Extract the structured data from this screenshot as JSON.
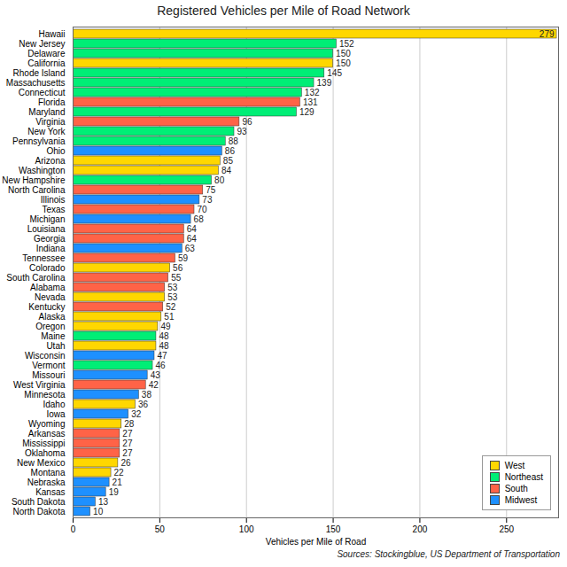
{
  "chart_data": {
    "type": "bar",
    "orientation": "horizontal",
    "title": "Registered Vehicles per Mile of Road Network",
    "x_label": "Vehicles per Mile of Road",
    "source": "Sources: Stockingblue, US Department of Transportation",
    "categories": [
      "Hawaii",
      "New Jersey",
      "Delaware",
      "California",
      "Rhode Island",
      "Massachusetts",
      "Connecticut",
      "Florida",
      "Maryland",
      "Virginia",
      "New York",
      "Pennsylvania",
      "Ohio",
      "Arizona",
      "Washington",
      "New Hampshire",
      "North Carolina",
      "Illinois",
      "Texas",
      "Michigan",
      "Louisiana",
      "Georgia",
      "Indiana",
      "Tennessee",
      "Colorado",
      "South Carolina",
      "Alabama",
      "Nevada",
      "Kentucky",
      "Alaska",
      "Oregon",
      "Maine",
      "Utah",
      "Wisconsin",
      "Vermont",
      "Missouri",
      "West Virginia",
      "Minnesota",
      "Idaho",
      "Iowa",
      "Wyoming",
      "Arkansas",
      "Mississippi",
      "Oklahoma",
      "New Mexico",
      "Montana",
      "Nebraska",
      "Kansas",
      "South Dakota",
      "North Dakota"
    ],
    "series": [
      {
        "name": "West",
        "color": "#ffd700",
        "values": [
          279,
          null,
          null,
          150,
          null,
          null,
          null,
          null,
          null,
          null,
          null,
          null,
          null,
          85,
          84,
          null,
          null,
          null,
          null,
          null,
          null,
          null,
          null,
          null,
          56,
          null,
          null,
          53,
          null,
          51,
          49,
          null,
          48,
          null,
          null,
          null,
          null,
          null,
          36,
          null,
          28,
          null,
          null,
          null,
          26,
          22,
          null,
          null,
          null,
          null
        ]
      },
      {
        "name": "Northeast",
        "color": "#00ee76",
        "values": [
          null,
          152,
          150,
          null,
          145,
          139,
          132,
          null,
          129,
          null,
          93,
          88,
          null,
          null,
          null,
          80,
          null,
          null,
          null,
          null,
          null,
          null,
          null,
          null,
          null,
          null,
          null,
          null,
          null,
          null,
          null,
          48,
          null,
          null,
          46,
          null,
          null,
          null,
          null,
          null,
          null,
          null,
          null,
          null,
          null,
          null,
          null,
          null,
          null,
          null
        ]
      },
      {
        "name": "South",
        "color": "#ff6347",
        "values": [
          null,
          null,
          null,
          null,
          null,
          null,
          null,
          131,
          null,
          96,
          null,
          null,
          null,
          null,
          null,
          null,
          75,
          null,
          70,
          null,
          64,
          64,
          null,
          59,
          null,
          55,
          53,
          null,
          52,
          null,
          null,
          null,
          null,
          null,
          null,
          null,
          42,
          null,
          null,
          null,
          null,
          27,
          27,
          27,
          null,
          null,
          null,
          null,
          null,
          null
        ]
      },
      {
        "name": "Midwest",
        "color": "#1e90ff",
        "values": [
          null,
          null,
          null,
          null,
          null,
          null,
          null,
          null,
          null,
          null,
          null,
          null,
          86,
          null,
          null,
          null,
          null,
          73,
          null,
          68,
          null,
          null,
          63,
          null,
          null,
          null,
          null,
          null,
          null,
          null,
          null,
          null,
          null,
          47,
          null,
          43,
          null,
          38,
          null,
          32,
          null,
          null,
          null,
          null,
          null,
          null,
          21,
          19,
          13,
          10
        ]
      }
    ],
    "xlim": [
      0,
      280
    ],
    "xticks": [
      0,
      50,
      100,
      150,
      200,
      250
    ],
    "grid": true,
    "data_labels": true,
    "legend": "bottom-right"
  }
}
